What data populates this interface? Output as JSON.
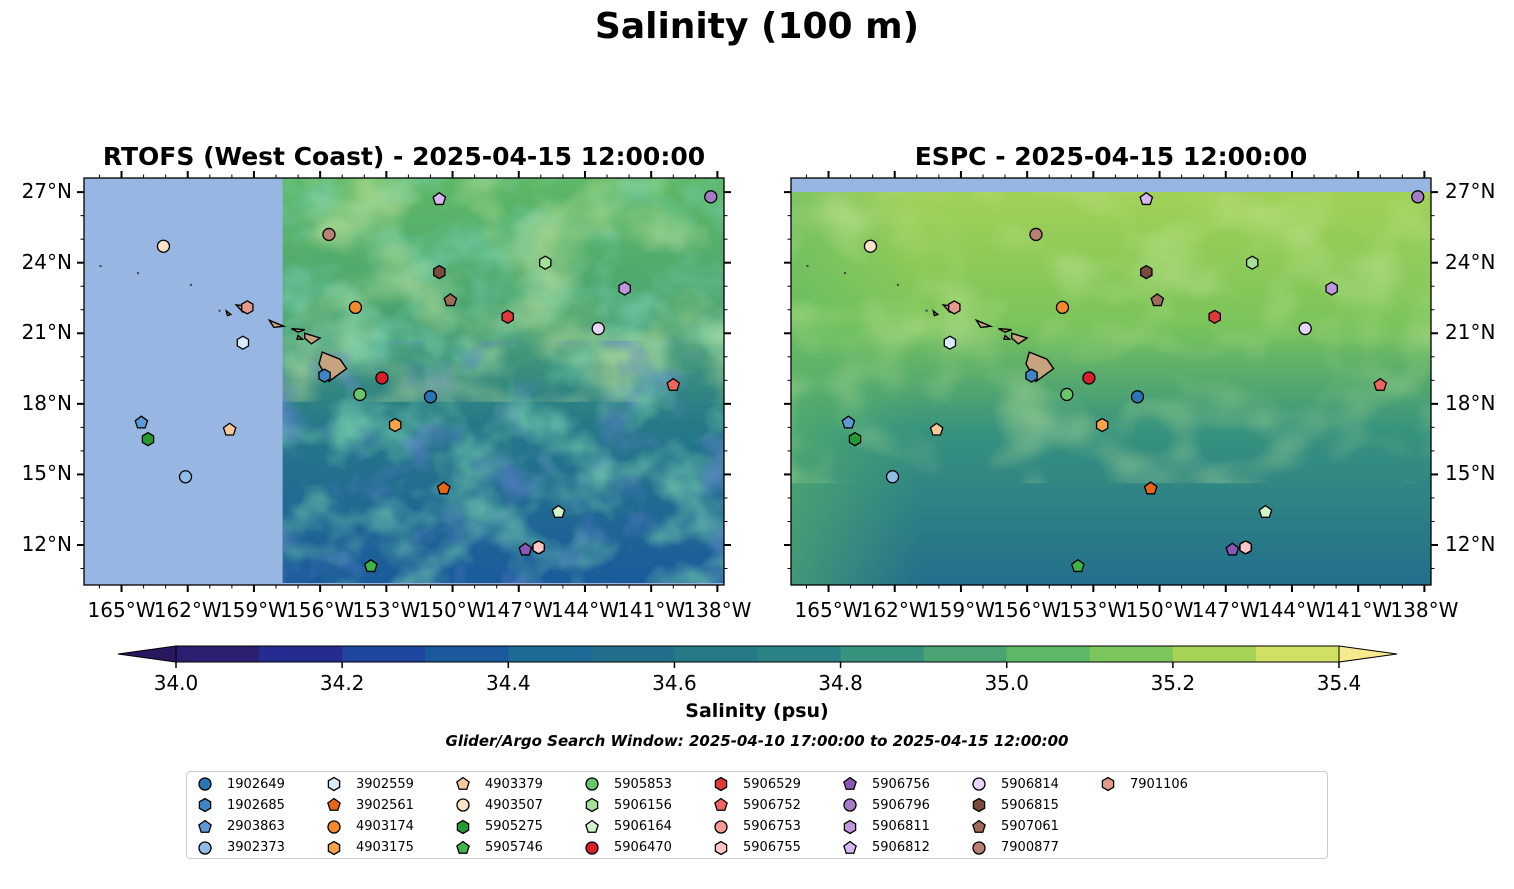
{
  "title": "Salinity (100 m)",
  "panels": [
    {
      "title": "RTOFS (West Coast) - 2025-04-15 12:00:00"
    },
    {
      "title": "ESPC - 2025-04-15 12:00:00"
    }
  ],
  "lon_ticks": [
    "165°W",
    "162°W",
    "159°W",
    "156°W",
    "153°W",
    "150°W",
    "147°W",
    "144°W",
    "141°W",
    "138°W"
  ],
  "lat_ticks": [
    "27°N",
    "24°N",
    "21°N",
    "18°N",
    "15°N",
    "12°N"
  ],
  "extent": {
    "lon_min": -166.7,
    "lon_max": -137.7,
    "lat_min": 10.3,
    "lat_max": 27.6
  },
  "rtofs_data_west_lon": -157.7,
  "colorbar": {
    "label": "Salinity (psu)",
    "ticks": [
      "34.0",
      "34.2",
      "34.4",
      "34.6",
      "34.8",
      "35.0",
      "35.2",
      "35.4"
    ],
    "min": 34.0,
    "max": 35.4,
    "step": 0.1,
    "colors": [
      "#2a1f70",
      "#262b91",
      "#1f46a0",
      "#1a5a9c",
      "#1d6a96",
      "#226f8c",
      "#267a88",
      "#2a8485",
      "#37937e",
      "#4aa372",
      "#5db866",
      "#7cc55a",
      "#a6d256",
      "#d0e065"
    ],
    "under": "#29175f",
    "over": "#f7ea8e"
  },
  "search_window": "Glider/Argo Search Window: 2025-04-10 17:00:00 to 2025-04-15 12:00:00",
  "land_color": "#c7a47e",
  "ocean_mask_color": "#98b6e2",
  "floats": [
    {
      "id": "1902649",
      "marker": "circle",
      "color": "#2a74b8",
      "lon": -151.0,
      "lat": 18.3
    },
    {
      "id": "1902685",
      "marker": "hexagon",
      "color": "#3f85c6",
      "lon": -155.8,
      "lat": 19.2
    },
    {
      "id": "2903863",
      "marker": "pentagon",
      "color": "#5d9ad6",
      "lon": -164.1,
      "lat": 17.2
    },
    {
      "id": "3902373",
      "marker": "circle",
      "color": "#8fbde6",
      "lon": -162.1,
      "lat": 14.9
    },
    {
      "id": "3902559",
      "marker": "hexagon",
      "color": "#d9ebf9",
      "lon": -159.5,
      "lat": 20.6
    },
    {
      "id": "3902561",
      "marker": "pentagon",
      "color": "#e7661a",
      "lon": -150.4,
      "lat": 14.4
    },
    {
      "id": "4903174",
      "marker": "circle",
      "color": "#f5892e",
      "lon": -154.4,
      "lat": 22.1
    },
    {
      "id": "4903175",
      "marker": "hexagon",
      "color": "#f7a24a",
      "lon": -152.6,
      "lat": 17.1
    },
    {
      "id": "4903379",
      "marker": "pentagon",
      "color": "#f7c89a",
      "lon": -160.1,
      "lat": 16.9
    },
    {
      "id": "4903507",
      "marker": "circle",
      "color": "#fbe2c6",
      "lon": -163.1,
      "lat": 24.7
    },
    {
      "id": "5905275",
      "marker": "hexagon",
      "color": "#239a34",
      "lon": -163.8,
      "lat": 16.5
    },
    {
      "id": "5905746",
      "marker": "pentagon",
      "color": "#3eb44a",
      "lon": -153.7,
      "lat": 11.1
    },
    {
      "id": "5905853",
      "marker": "circle",
      "color": "#6cc56a",
      "lon": -154.2,
      "lat": 18.4
    },
    {
      "id": "5906156",
      "marker": "hexagon",
      "color": "#a6e19a",
      "lon": -145.8,
      "lat": 24.0
    },
    {
      "id": "5906164",
      "marker": "pentagon",
      "color": "#d2f4c9",
      "lon": -145.2,
      "lat": 13.4
    },
    {
      "id": "5906470",
      "marker": "circle",
      "color": "#d7202a",
      "lon": -153.2,
      "lat": 19.1
    },
    {
      "id": "5906529",
      "marker": "hexagon",
      "color": "#de3a3a",
      "lon": -147.5,
      "lat": 21.7
    },
    {
      "id": "5906752",
      "marker": "pentagon",
      "color": "#f0665e",
      "lon": -140.0,
      "lat": 18.8
    },
    {
      "id": "5906753",
      "marker": "circle",
      "color": "#f49a99",
      "lon": -146.1,
      "lat": 11.9
    },
    {
      "id": "5906755",
      "marker": "hexagon",
      "color": "#fac6c5",
      "lon": -146.1,
      "lat": 11.9
    },
    {
      "id": "5906756",
      "marker": "pentagon",
      "color": "#8b57b5",
      "lon": -146.7,
      "lat": 11.8
    },
    {
      "id": "5906796",
      "marker": "circle",
      "color": "#a57ac7",
      "lon": -138.3,
      "lat": 26.8
    },
    {
      "id": "5906811",
      "marker": "hexagon",
      "color": "#be97dd",
      "lon": -142.2,
      "lat": 22.9
    },
    {
      "id": "5906812",
      "marker": "pentagon",
      "color": "#d5b8ef",
      "lon": -150.6,
      "lat": 26.7
    },
    {
      "id": "5906814",
      "marker": "circle",
      "color": "#e6d5f7",
      "lon": -143.4,
      "lat": 21.2
    },
    {
      "id": "5906815",
      "marker": "hexagon",
      "color": "#7a4a3c",
      "lon": -150.6,
      "lat": 23.6
    },
    {
      "id": "5907061",
      "marker": "pentagon",
      "color": "#a06a58",
      "lon": -150.1,
      "lat": 22.4
    },
    {
      "id": "7900877",
      "marker": "circle",
      "color": "#b98074",
      "lon": -155.6,
      "lat": 25.2
    },
    {
      "id": "7901106",
      "marker": "hexagon",
      "color": "#e49b8e",
      "lon": -159.3,
      "lat": 22.1
    }
  ]
}
